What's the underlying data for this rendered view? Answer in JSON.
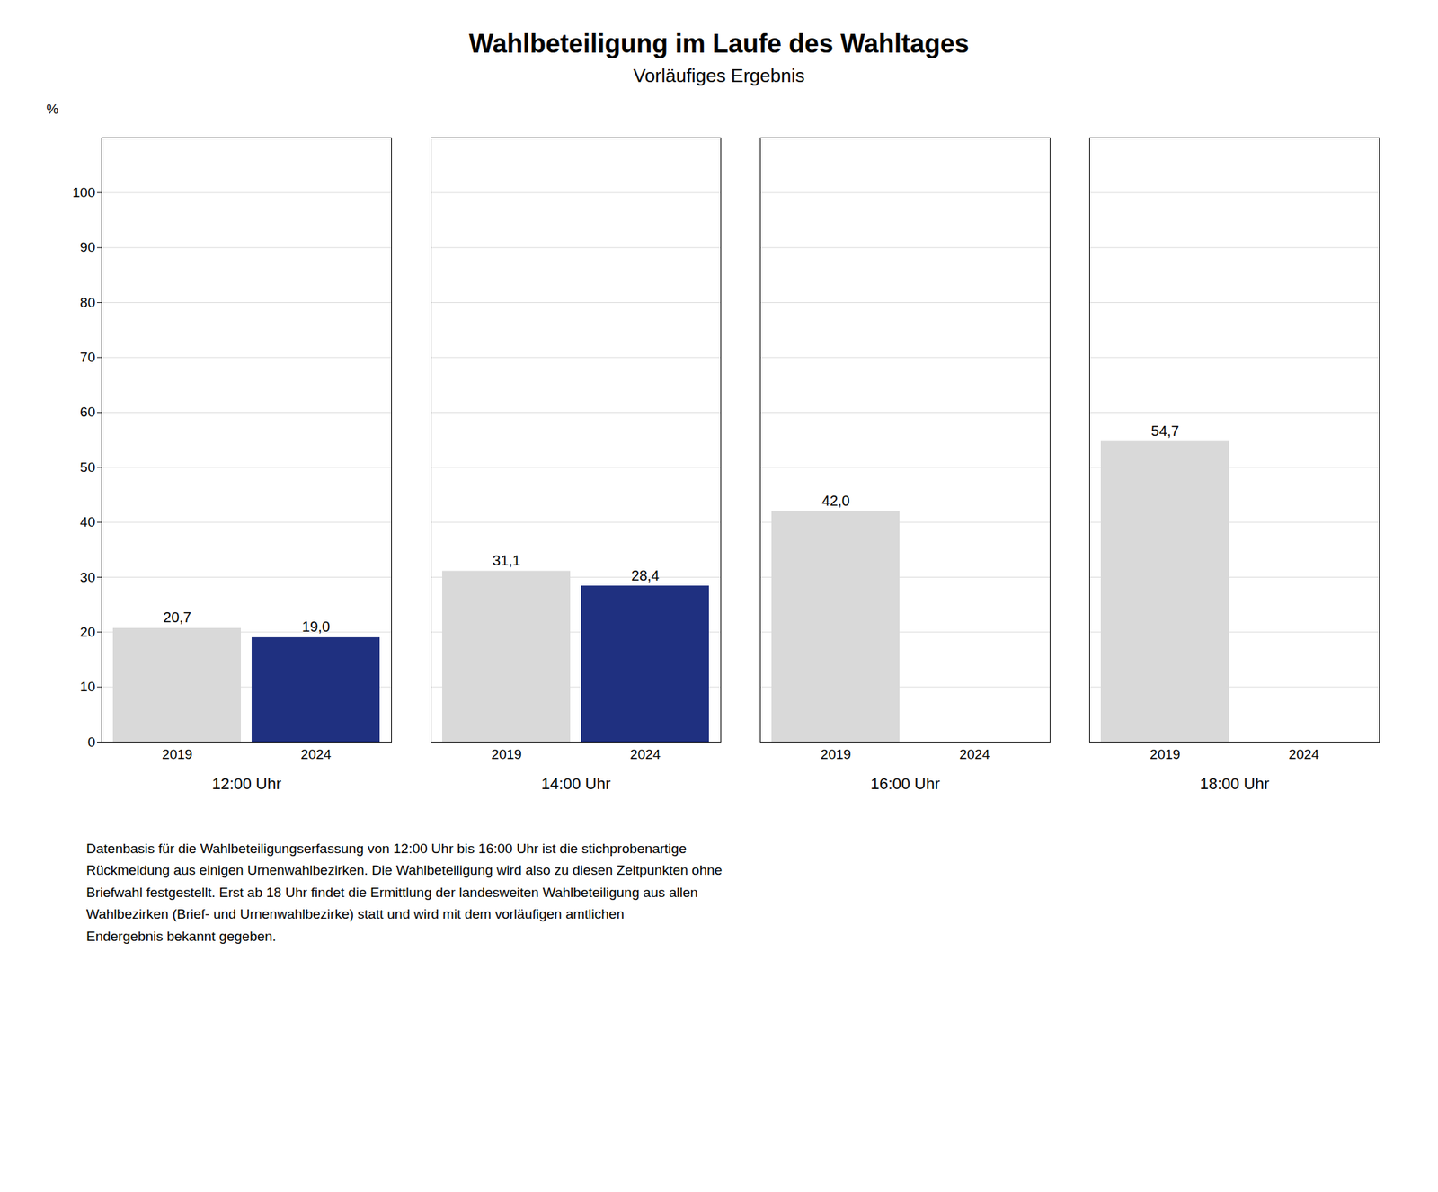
{
  "chart_data": {
    "type": "bar",
    "title": "Wahlbeteiligung im Laufe des Wahltages",
    "subtitle": "Vorläufiges Ergebnis",
    "ylabel": "%",
    "categories": [
      "12:00 Uhr",
      "14:00 Uhr",
      "16:00 Uhr",
      "18:00 Uhr"
    ],
    "series": [
      {
        "name": "2019",
        "color": "#d9d9d9",
        "values": [
          20.7,
          31.1,
          42.0,
          54.7
        ],
        "value_labels": [
          "20,7",
          "31,1",
          "42,0",
          "54,7"
        ]
      },
      {
        "name": "2024",
        "color": "#1f3080",
        "values": [
          19.0,
          28.4,
          null,
          null
        ],
        "value_labels": [
          "19,0",
          "28,4",
          null,
          null
        ]
      }
    ],
    "ylim": [
      0,
      110
    ],
    "yticks": [
      0,
      10,
      20,
      30,
      40,
      50,
      60,
      70,
      80,
      90,
      100
    ],
    "grid": true,
    "data_labels": true,
    "footnote": "Datenbasis für die Wahlbeteiligungserfassung von 12:00 Uhr bis 16:00 Uhr ist die stichprobenartige\nRückmeldung aus einigen Urnenwahlbezirken. Die Wahlbeteiligung wird also zu diesen Zeitpunkten ohne\nBriefwahl festgestellt. Erst ab 18 Uhr findet die Ermittlung der landesweiten Wahlbeteiligung aus allen\nWahlbezirken (Brief- und Urnenwahlbezirke) statt und wird mit dem vorläufigen amtlichen\nEndergebnis bekannt gegeben."
  }
}
